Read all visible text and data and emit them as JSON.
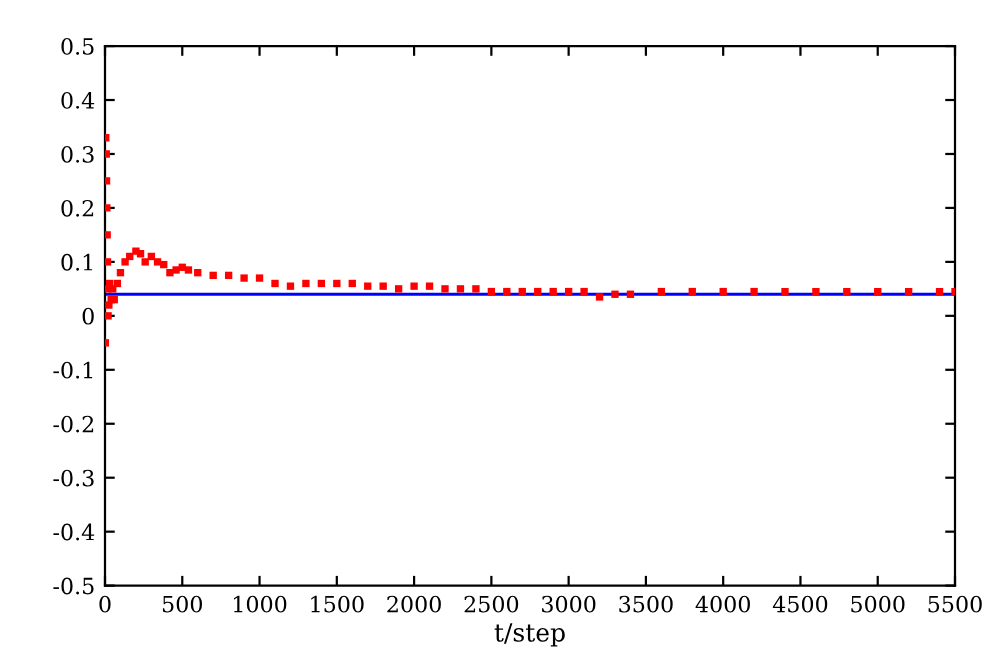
{
  "chart_data": {
    "type": "line",
    "xlabel": "t/step",
    "xlim": [
      0,
      5500
    ],
    "ylim": [
      -0.5,
      0.5
    ],
    "xticks": [
      0,
      500,
      1000,
      1500,
      2000,
      2500,
      3000,
      3500,
      4000,
      4500,
      5000,
      5500
    ],
    "yticks": [
      -0.5,
      -0.4,
      -0.3,
      -0.2,
      -0.1,
      0,
      0.1,
      0.2,
      0.3,
      0.4,
      0.5
    ],
    "grid": false,
    "legend": false,
    "series": [
      {
        "type": "scatter",
        "color": "#ff0000",
        "marker": "square",
        "x": [
          2,
          5,
          8,
          10,
          12,
          14,
          16,
          18,
          20,
          25,
          30,
          40,
          50,
          60,
          80,
          100,
          130,
          160,
          200,
          230,
          260,
          300,
          340,
          380,
          420,
          460,
          500,
          540,
          600,
          700,
          800,
          900,
          1000,
          1100,
          1200,
          1300,
          1400,
          1500,
          1600,
          1700,
          1800,
          1900,
          2000,
          2100,
          2200,
          2300,
          2400,
          2500,
          2600,
          2700,
          2800,
          2900,
          3000,
          3100,
          3200,
          3300,
          3400,
          3600,
          3800,
          4000,
          4200,
          4400,
          4600,
          4800,
          5000,
          5200,
          5400,
          5500
        ],
        "values": [
          -0.05,
          0.33,
          0.3,
          0.25,
          0.2,
          0.15,
          0.1,
          0.05,
          0.0,
          0.02,
          0.06,
          0.03,
          0.05,
          0.03,
          0.06,
          0.08,
          0.1,
          0.11,
          0.12,
          0.115,
          0.1,
          0.11,
          0.1,
          0.095,
          0.08,
          0.085,
          0.09,
          0.085,
          0.08,
          0.075,
          0.075,
          0.07,
          0.07,
          0.06,
          0.055,
          0.06,
          0.06,
          0.06,
          0.06,
          0.055,
          0.055,
          0.05,
          0.055,
          0.055,
          0.05,
          0.05,
          0.05,
          0.045,
          0.045,
          0.045,
          0.045,
          0.045,
          0.045,
          0.045,
          0.035,
          0.04,
          0.04,
          0.045,
          0.045,
          0.045,
          0.045,
          0.045,
          0.045,
          0.045,
          0.045,
          0.045,
          0.045,
          0.045
        ]
      },
      {
        "color": "#0000ff",
        "line_style": "solid",
        "x": [
          0,
          5500
        ],
        "values": [
          0.04,
          0.04
        ]
      }
    ]
  }
}
